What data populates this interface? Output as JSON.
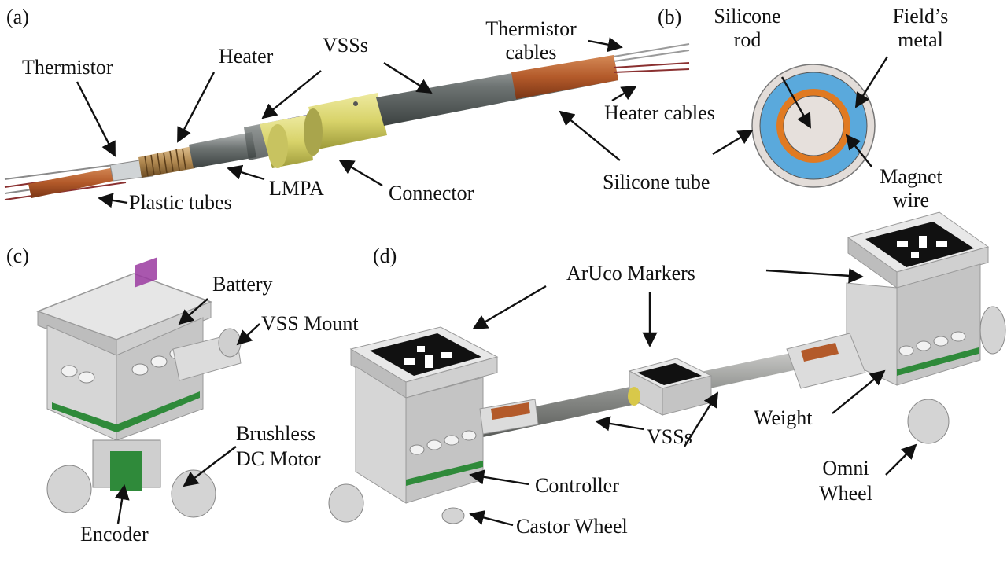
{
  "panels": [
    "(a)",
    "(b)",
    "(c)",
    "(d)"
  ],
  "panel_a": {
    "labels": [
      "Thermistor",
      "Heater",
      "VSSs",
      "Thermistor cables",
      "Heater cables",
      "Plastic tubes",
      "LMPA",
      "Connector",
      "Silicone tube"
    ]
  },
  "panel_b": {
    "labels": [
      "Silicone rod",
      "Field’s metal",
      "Magnet wire"
    ]
  },
  "panel_c": {
    "labels": [
      "Battery",
      "VSS Mount",
      "Brushless DC Motor",
      "Encoder"
    ]
  },
  "panel_d": {
    "labels": [
      "ArUco Markers",
      "VSSs",
      "Weight",
      "Controller",
      "Castor Wheel",
      "Omni Wheel"
    ]
  },
  "colors": {
    "copper": "#b35a2a",
    "brass": "#c49a5a",
    "connector_yellow": "#e0dc74",
    "blue": "#2c2d8a",
    "magnet_wire": "#e07a22",
    "fields_metal": "#5aa9dc",
    "silicone": "#e6e0dc",
    "pcb_green": "#2f8a3a",
    "battery_purple": "#9a3aa0"
  }
}
